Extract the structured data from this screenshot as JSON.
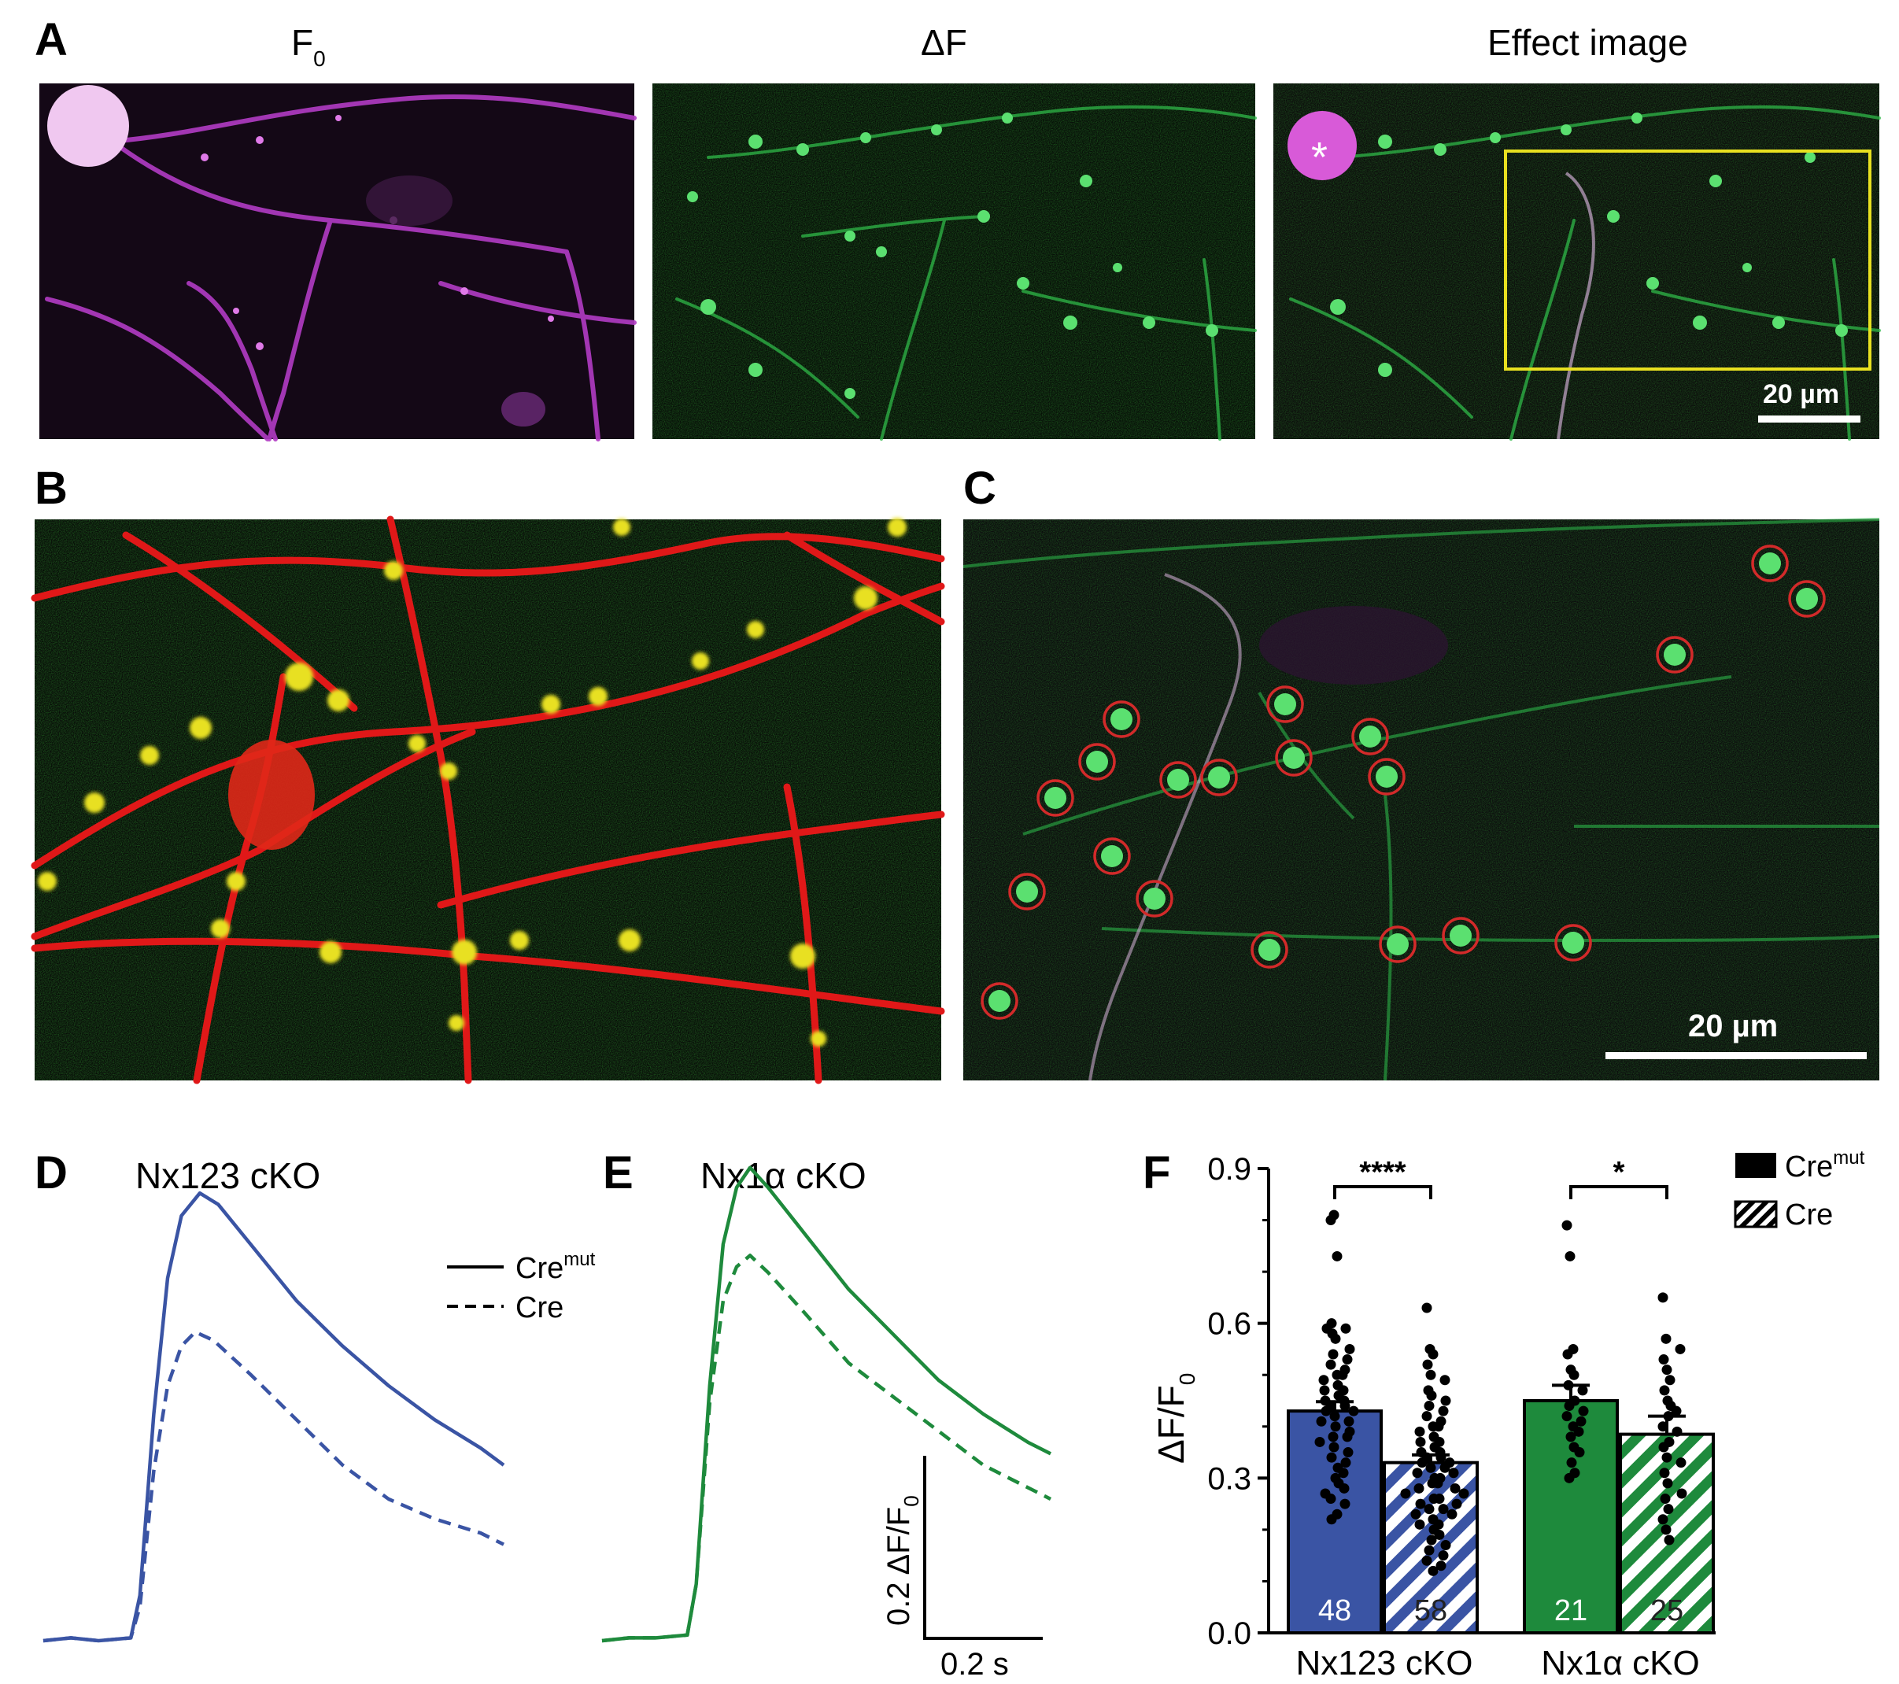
{
  "panels": {
    "A": {
      "letter": "A",
      "titles": {
        "f0": "F",
        "f0_sub": "0",
        "delta": "ΔF",
        "effect": "Effect image"
      },
      "scalebar": "20 µm",
      "asterisk": "*"
    },
    "B": {
      "letter": "B"
    },
    "C": {
      "letter": "C",
      "scalebar": "20 µm",
      "roi_count": 20
    },
    "D": {
      "letter": "D",
      "title": "Nx123 cKO"
    },
    "E": {
      "letter": "E",
      "title": "Nx1α cKO"
    },
    "F": {
      "letter": "F"
    }
  },
  "legend_de": {
    "solid": "Cre",
    "solid_sup": "mut",
    "dashed": "Cre"
  },
  "scale_de": {
    "y_prefix": "0.2 ΔF/F",
    "y_sub": "0",
    "x": "0.2 s"
  },
  "legend_f": {
    "solid": "Cre",
    "solid_sup": "mut",
    "hatched": "Cre"
  },
  "colors": {
    "blue": "#3a54a4",
    "green": "#1e8a3c",
    "magenta": "#b23cc4",
    "red": "#e01818",
    "yellow": "#e8e020",
    "neurite_green": "#3bd455",
    "roi": "#d22a2a"
  },
  "chart_data": [
    {
      "type": "line",
      "panel": "D",
      "title": "Nx123 cKO",
      "x_unit": "s",
      "series": [
        {
          "name": "Cre",
          "name_sup": "mut",
          "style": "solid",
          "color": "#3a54a4",
          "points": [
            [
              0,
              0
            ],
            [
              0.06,
              0.005
            ],
            [
              0.12,
              0
            ],
            [
              0.19,
              0.005
            ],
            [
              0.21,
              0.08
            ],
            [
              0.24,
              0.4
            ],
            [
              0.27,
              0.64
            ],
            [
              0.3,
              0.75
            ],
            [
              0.34,
              0.79
            ],
            [
              0.38,
              0.77
            ],
            [
              0.45,
              0.7
            ],
            [
              0.55,
              0.6
            ],
            [
              0.65,
              0.52
            ],
            [
              0.75,
              0.45
            ],
            [
              0.85,
              0.39
            ],
            [
              0.95,
              0.34
            ],
            [
              1.0,
              0.31
            ]
          ]
        },
        {
          "name": "Cre",
          "style": "dashed",
          "color": "#3a54a4",
          "points": [
            [
              0,
              0
            ],
            [
              0.06,
              0.005
            ],
            [
              0.12,
              0
            ],
            [
              0.19,
              0.005
            ],
            [
              0.21,
              0.06
            ],
            [
              0.24,
              0.3
            ],
            [
              0.27,
              0.45
            ],
            [
              0.3,
              0.52
            ],
            [
              0.33,
              0.545
            ],
            [
              0.37,
              0.53
            ],
            [
              0.45,
              0.47
            ],
            [
              0.55,
              0.39
            ],
            [
              0.65,
              0.31
            ],
            [
              0.75,
              0.25
            ],
            [
              0.85,
              0.215
            ],
            [
              0.95,
              0.19
            ],
            [
              1.0,
              0.17
            ]
          ]
        }
      ],
      "scale_bar": {
        "y": 0.2,
        "y_unit": "ΔF/F0",
        "x": 0.2,
        "x_unit": "s"
      }
    },
    {
      "type": "line",
      "panel": "E",
      "title": "Nx1α cKO",
      "x_unit": "s",
      "series": [
        {
          "name": "Cre",
          "name_sup": "mut",
          "style": "solid",
          "color": "#1e8a3c",
          "points": [
            [
              0,
              0
            ],
            [
              0.06,
              0.005
            ],
            [
              0.12,
              0.005
            ],
            [
              0.19,
              0.01
            ],
            [
              0.21,
              0.1
            ],
            [
              0.24,
              0.45
            ],
            [
              0.27,
              0.7
            ],
            [
              0.3,
              0.8
            ],
            [
              0.33,
              0.835
            ],
            [
              0.37,
              0.8
            ],
            [
              0.45,
              0.72
            ],
            [
              0.55,
              0.62
            ],
            [
              0.65,
              0.54
            ],
            [
              0.75,
              0.46
            ],
            [
              0.85,
              0.4
            ],
            [
              0.95,
              0.35
            ],
            [
              1.0,
              0.33
            ]
          ]
        },
        {
          "name": "Cre",
          "style": "dashed",
          "color": "#1e8a3c",
          "points": [
            [
              0,
              0
            ],
            [
              0.06,
              0.005
            ],
            [
              0.12,
              0.005
            ],
            [
              0.19,
              0.01
            ],
            [
              0.21,
              0.1
            ],
            [
              0.24,
              0.42
            ],
            [
              0.27,
              0.6
            ],
            [
              0.3,
              0.66
            ],
            [
              0.33,
              0.68
            ],
            [
              0.37,
              0.65
            ],
            [
              0.45,
              0.58
            ],
            [
              0.55,
              0.49
            ],
            [
              0.65,
              0.43
            ],
            [
              0.75,
              0.37
            ],
            [
              0.85,
              0.31
            ],
            [
              0.95,
              0.27
            ],
            [
              1.0,
              0.25
            ]
          ]
        }
      ]
    },
    {
      "type": "bar",
      "panel": "F",
      "ylabel": "ΔF/F",
      "ylabel_sub": "0",
      "ylim": [
        0,
        0.9
      ],
      "yticks": [
        "0.0",
        "0.3",
        "0.6",
        "0.9"
      ],
      "groups": [
        "Nx123 cKO",
        "Nx1α cKO"
      ],
      "bars": [
        {
          "group": "Nx123 cKO",
          "condition": "Cremut",
          "mean": 0.43,
          "sem": 0.018,
          "n": "48",
          "style": "solid",
          "color": "#3a54a4",
          "points": [
            0.8,
            0.81,
            0.73,
            0.6,
            0.59,
            0.59,
            0.58,
            0.57,
            0.55,
            0.54,
            0.53,
            0.52,
            0.51,
            0.5,
            0.5,
            0.49,
            0.48,
            0.47,
            0.47,
            0.46,
            0.45,
            0.45,
            0.44,
            0.44,
            0.43,
            0.43,
            0.42,
            0.41,
            0.41,
            0.4,
            0.39,
            0.38,
            0.38,
            0.37,
            0.36,
            0.35,
            0.34,
            0.33,
            0.32,
            0.31,
            0.3,
            0.29,
            0.28,
            0.27,
            0.26,
            0.25,
            0.23,
            0.22
          ]
        },
        {
          "group": "Nx123 cKO",
          "condition": "Cre",
          "mean": 0.33,
          "sem": 0.015,
          "n": "58",
          "style": "hatched",
          "color": "#3a54a4",
          "points": [
            0.63,
            0.55,
            0.54,
            0.52,
            0.5,
            0.49,
            0.47,
            0.46,
            0.45,
            0.44,
            0.43,
            0.42,
            0.41,
            0.4,
            0.4,
            0.39,
            0.38,
            0.37,
            0.37,
            0.36,
            0.35,
            0.35,
            0.34,
            0.34,
            0.33,
            0.33,
            0.32,
            0.32,
            0.31,
            0.31,
            0.3,
            0.3,
            0.29,
            0.29,
            0.28,
            0.28,
            0.27,
            0.27,
            0.26,
            0.26,
            0.25,
            0.25,
            0.24,
            0.24,
            0.23,
            0.23,
            0.22,
            0.21,
            0.21,
            0.2,
            0.19,
            0.18,
            0.17,
            0.16,
            0.15,
            0.14,
            0.13,
            0.12
          ]
        },
        {
          "group": "Nx1α cKO",
          "condition": "Cremut",
          "mean": 0.45,
          "sem": 0.03,
          "n": "21",
          "style": "solid",
          "color": "#1e8a3c",
          "points": [
            0.79,
            0.73,
            0.55,
            0.54,
            0.51,
            0.5,
            0.48,
            0.47,
            0.45,
            0.44,
            0.43,
            0.42,
            0.41,
            0.4,
            0.39,
            0.38,
            0.36,
            0.35,
            0.33,
            0.31,
            0.3
          ]
        },
        {
          "group": "Nx1α cKO",
          "condition": "Cre",
          "mean": 0.385,
          "sem": 0.035,
          "n": "25",
          "style": "hatched",
          "color": "#1e8a3c",
          "points": [
            0.65,
            0.57,
            0.55,
            0.53,
            0.51,
            0.49,
            0.47,
            0.45,
            0.44,
            0.43,
            0.42,
            0.4,
            0.39,
            0.37,
            0.36,
            0.34,
            0.33,
            0.31,
            0.29,
            0.27,
            0.26,
            0.24,
            0.22,
            0.2,
            0.18
          ]
        }
      ],
      "significance": [
        {
          "group": "Nx123 cKO",
          "label": "****"
        },
        {
          "group": "Nx1α cKO",
          "label": "*"
        }
      ]
    }
  ]
}
